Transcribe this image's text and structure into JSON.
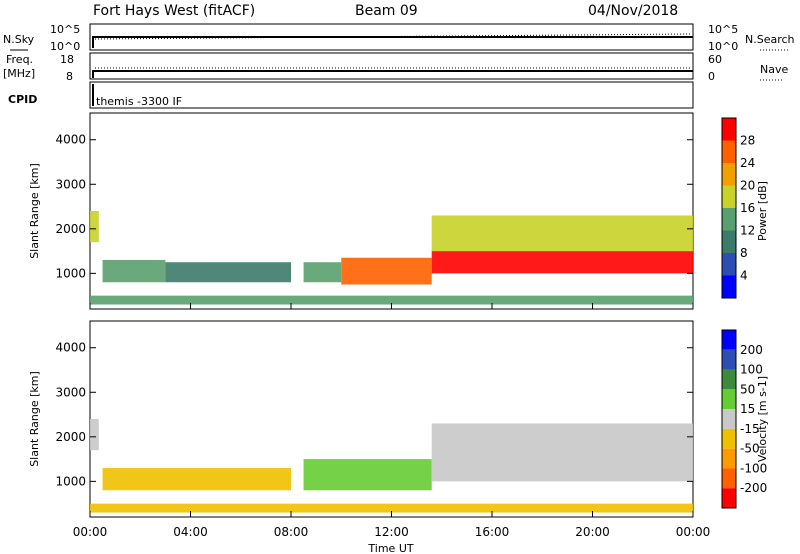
{
  "header": {
    "title": "Fort Hays West (fitACF)",
    "beam": "Beam 09",
    "date": "04/Nov/2018"
  },
  "summary": {
    "nsky_label": "N.Sky",
    "nsky_ticks": [
      "10^5",
      "10^0"
    ],
    "nsearch_label": "N.Search",
    "nsearch_ticks": [
      "10^5",
      "10^0"
    ],
    "freq_label": "Freq.",
    "freq_unit": "[MHz]",
    "freq_ticks": [
      "18",
      "8"
    ],
    "nave_label": "Nave",
    "nave_ticks": [
      "60",
      "0"
    ],
    "cpid_label": "CPID",
    "cpid_text": "themis -3300 IF"
  },
  "colors": {
    "power_scale": [
      "#0000ff",
      "#2d4fb5",
      "#3c7a6a",
      "#5aa06e",
      "#c8d228",
      "#f0a000",
      "#ff6000",
      "#ff0000"
    ],
    "velocity_scale": [
      "#ff0000",
      "#ff6000",
      "#ff9a00",
      "#f0c000",
      "#c8c8c8",
      "#66cc33",
      "#3c8a3c",
      "#2d4fb5",
      "#0000ff"
    ],
    "grey": "#c8c8c8"
  },
  "chart_data": [
    {
      "type": "heatmap",
      "title": "Power",
      "xlabel": "",
      "ylabel": "Slant Range [km]",
      "ylim": [
        200,
        4600
      ],
      "yticks": [
        "1000",
        "2000",
        "3000",
        "4000"
      ],
      "xticks": [
        "00:00",
        "04:00",
        "08:00",
        "12:00",
        "16:00",
        "20:00",
        "00:00"
      ],
      "colorbar": {
        "label": "Power [dB]",
        "ticks": [
          "4",
          "8",
          "12",
          "16",
          "20",
          "24",
          "28"
        ],
        "range": [
          0,
          32
        ]
      },
      "regions": [
        {
          "t": [
            0.0,
            0.35
          ],
          "range_km": [
            1700,
            2400
          ],
          "value": 18
        },
        {
          "t": [
            0.5,
            3.0
          ],
          "range_km": [
            800,
            1300
          ],
          "value": 12
        },
        {
          "t": [
            3.0,
            8.0
          ],
          "range_km": [
            800,
            1250
          ],
          "value": 10
        },
        {
          "t": [
            8.5,
            10.0
          ],
          "range_km": [
            800,
            1250
          ],
          "value": 14
        },
        {
          "t": [
            10.0,
            13.6
          ],
          "range_km": [
            750,
            1350
          ],
          "value": 26
        },
        {
          "t": [
            13.6,
            24.0
          ],
          "range_km": [
            1000,
            1500
          ],
          "value": 28
        },
        {
          "t": [
            13.6,
            24.0
          ],
          "range_km": [
            1500,
            2300
          ],
          "value": 16
        },
        {
          "t": [
            0.0,
            24.0
          ],
          "range_km": [
            300,
            500
          ],
          "value": 12
        }
      ]
    },
    {
      "type": "heatmap",
      "title": "Velocity",
      "xlabel": "Time UT",
      "ylabel": "Slant Range [km]",
      "ylim": [
        200,
        4600
      ],
      "yticks": [
        "1000",
        "2000",
        "3000",
        "4000"
      ],
      "xticks": [
        "00:00",
        "04:00",
        "08:00",
        "12:00",
        "16:00",
        "20:00",
        "00:00"
      ],
      "colorbar": {
        "label": "Velocity [m s-1]",
        "ticks": [
          "200",
          "100",
          "50",
          "15",
          "-15",
          "-50",
          "-100",
          "-200"
        ],
        "range": [
          -250,
          250
        ]
      },
      "regions": [
        {
          "t": [
            0.0,
            0.35
          ],
          "range_km": [
            1700,
            2400
          ],
          "value": 0
        },
        {
          "t": [
            0.5,
            8.0
          ],
          "range_km": [
            800,
            1300
          ],
          "value": -30
        },
        {
          "t": [
            8.5,
            13.6
          ],
          "range_km": [
            800,
            1500
          ],
          "value": 40
        },
        {
          "t": [
            13.6,
            24.0
          ],
          "range_km": [
            1000,
            2300
          ],
          "value": 0
        },
        {
          "t": [
            0.0,
            24.0
          ],
          "range_km": [
            300,
            500
          ],
          "value": -40
        }
      ]
    }
  ]
}
